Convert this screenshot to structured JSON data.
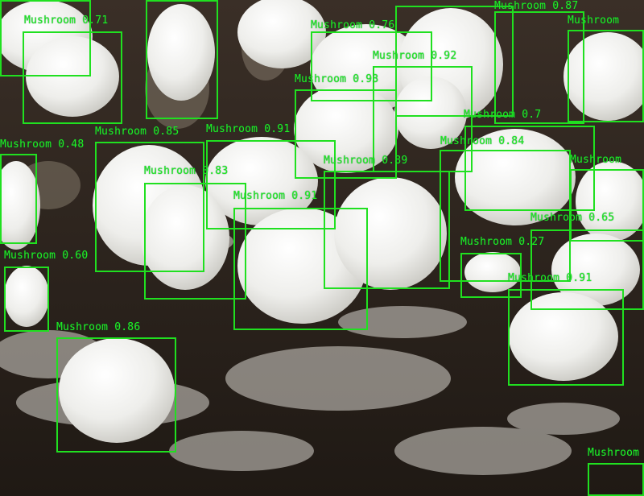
{
  "image": {
    "subject": "white button mushrooms on soil",
    "colors": {
      "box": "#20e020",
      "label": "#22ee22",
      "soil": "#2a211c",
      "cap": "#f2f1ee"
    }
  },
  "detections": [
    {
      "label": "Mushroom",
      "score": "0.71"
    },
    {
      "label": "Mushroom",
      "score": "0.76"
    },
    {
      "label": "Mushroom",
      "score": "0.87"
    },
    {
      "label": "Mushroom",
      "score": "0.92"
    },
    {
      "label": "Mushroom",
      "score": "0.93"
    },
    {
      "label": "Mushroom",
      "score": "0.85"
    },
    {
      "label": "Mushroom",
      "score": "0.91"
    },
    {
      "label": "Mushroom",
      "score": "0.48"
    },
    {
      "label": "Mushroom",
      "score": "0.83"
    },
    {
      "label": "Mushroom",
      "score": "0.91"
    },
    {
      "label": "Mushroom",
      "score": "0.89"
    },
    {
      "label": "Mushroom",
      "score": "0.84"
    },
    {
      "label": "Mushroom",
      "score": "0.7"
    },
    {
      "label": "Mushroom",
      "score": "0.65"
    },
    {
      "label": "Mushroom",
      "score": "0.27"
    },
    {
      "label": "Mushroom",
      "score": "0.60"
    },
    {
      "label": "Mushroom",
      "score": "0.91"
    },
    {
      "label": "Mushroom",
      "score": "0.86"
    },
    {
      "label": "Mushroom",
      "score": ""
    },
    {
      "label": "Mushroom",
      "score": ""
    },
    {
      "label": "Mushroom",
      "score": ""
    }
  ]
}
